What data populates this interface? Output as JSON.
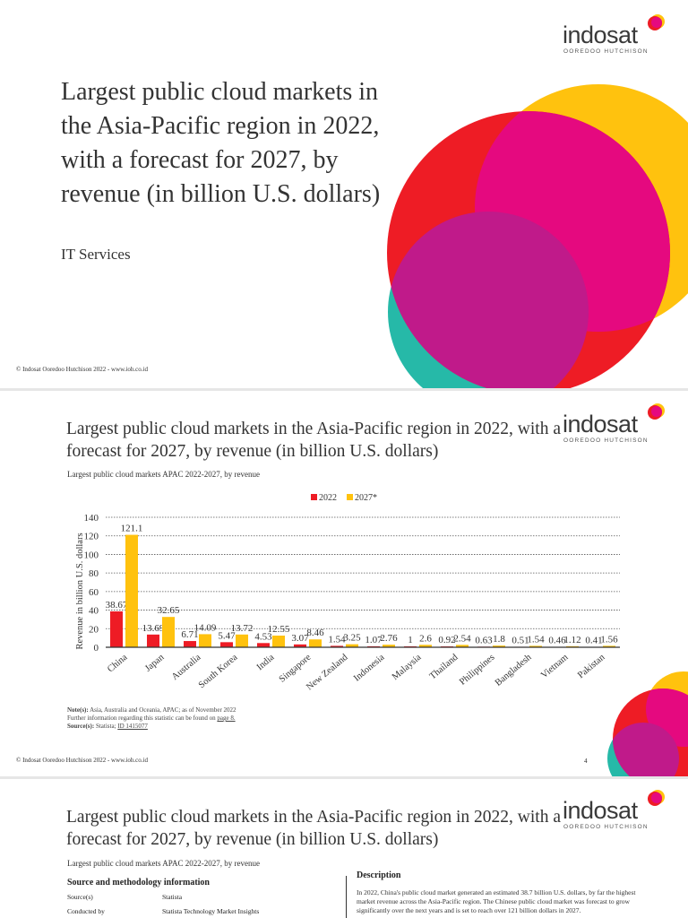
{
  "brand": {
    "name": "indosat",
    "sub": "OOREDOO HUTCHISON",
    "colors": {
      "red": "#ee1c25",
      "yellow": "#ffc20e",
      "magenta": "#e5097f",
      "teal": "#26b9a8",
      "purple": "#c01a8a"
    }
  },
  "slide1": {
    "title": "Largest public cloud markets in the Asia-Pacific region in 2022, with a forecast for 2027, by revenue (in billion U.S. dollars)",
    "subtitle": "IT Services",
    "copyright": "© Indosat Ooredoo Hutchison 2022 - www.ioh.co.id"
  },
  "slide2": {
    "title": "Largest public cloud markets in the Asia-Pacific region in 2022, with a forecast for 2027, by revenue (in billion U.S. dollars)",
    "chart_caption": "Largest public cloud markets APAC 2022-2027, by revenue",
    "notes_label": "Note(s):",
    "notes": "Asia, Australia and Oceania, APAC; as of November 2022",
    "further": "Further information regarding this statistic can be found on",
    "further_link": "page 8.",
    "source_label": "Source(s):",
    "source": "Statista;",
    "source_link": "ID 1415077",
    "copyright": "© Indosat Ooredoo Hutchison 2022 - www.ioh.co.id",
    "page": "4"
  },
  "slide3": {
    "title": "Largest public cloud markets in the Asia-Pacific region in 2022, with a forecast for 2027, by revenue (in billion U.S. dollars)",
    "chart_caption": "Largest public cloud markets APAC 2022-2027, by revenue",
    "source_heading": "Source and methodology information",
    "rows": [
      {
        "k": "Source(s)",
        "v": "Statista"
      },
      {
        "k": "Conducted by",
        "v": "Statista Technology Market Insights"
      }
    ],
    "desc_heading": "Description",
    "desc": "In 2022, China's public cloud market generated an estimated 38.7 billion U.S. dollars, by far the highest market revenue across the Asia-Pacific region. The Chinese public cloud market was forecast to grow significantly over the next years and is set to reach over 121 billion dollars in 2027."
  },
  "chart_data": {
    "type": "bar",
    "title": "",
    "xlabel": "",
    "ylabel": "Revenue in billion U.S. dollars",
    "ylim": [
      0,
      140
    ],
    "yticks": [
      "0",
      "20",
      "40",
      "60",
      "80",
      "100",
      "120",
      "140"
    ],
    "grid": true,
    "legend": "top-center",
    "categories": [
      "China",
      "Japan",
      "Australia",
      "South Korea",
      "India",
      "Singapore",
      "New Zealand",
      "Indonesia",
      "Malaysia",
      "Thailand",
      "Philippines",
      "Bangladesh",
      "Vietnam",
      "Pakistan"
    ],
    "series": [
      {
        "name": "2022",
        "color": "#ee1c25",
        "values": [
          38.67,
          13.69,
          6.71,
          5.47,
          4.53,
          3.07,
          1.54,
          1.07,
          1,
          0.92,
          0.63,
          0.51,
          0.46,
          0.41
        ]
      },
      {
        "name": "2027*",
        "color": "#ffc20e",
        "values": [
          121.1,
          32.65,
          14.09,
          13.72,
          12.55,
          8.46,
          3.25,
          2.76,
          2.6,
          2.54,
          1.8,
          1.54,
          1.12,
          1.56
        ]
      }
    ]
  }
}
